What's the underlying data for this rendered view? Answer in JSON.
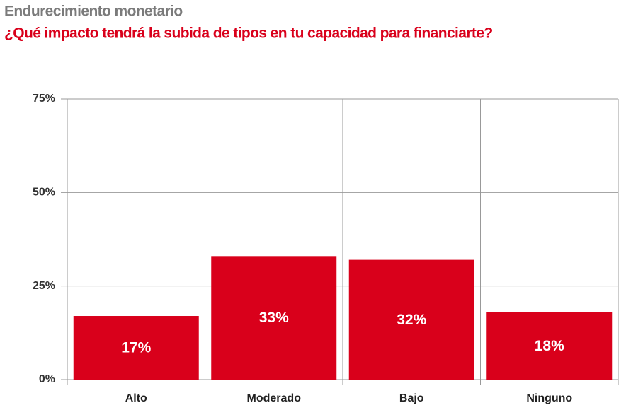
{
  "chart_data": {
    "type": "bar",
    "title": "Endurecimiento monetario",
    "subtitle": "¿Qué impacto tendrá la subida de tipos en tu capacidad para financiarte?",
    "categories": [
      "Alto",
      "Moderado",
      "Bajo",
      "Ninguno"
    ],
    "values": [
      17,
      33,
      32,
      18
    ],
    "value_labels": [
      "17%",
      "33%",
      "32%",
      "18%"
    ],
    "color": "#d9001b",
    "ylim": [
      0,
      75
    ],
    "yticks": [
      {
        "value": 0,
        "label": "0%"
      },
      {
        "value": 25,
        "label": "25%"
      },
      {
        "value": 50,
        "label": "50%"
      },
      {
        "value": 75,
        "label": "75%"
      }
    ],
    "grid": true
  }
}
